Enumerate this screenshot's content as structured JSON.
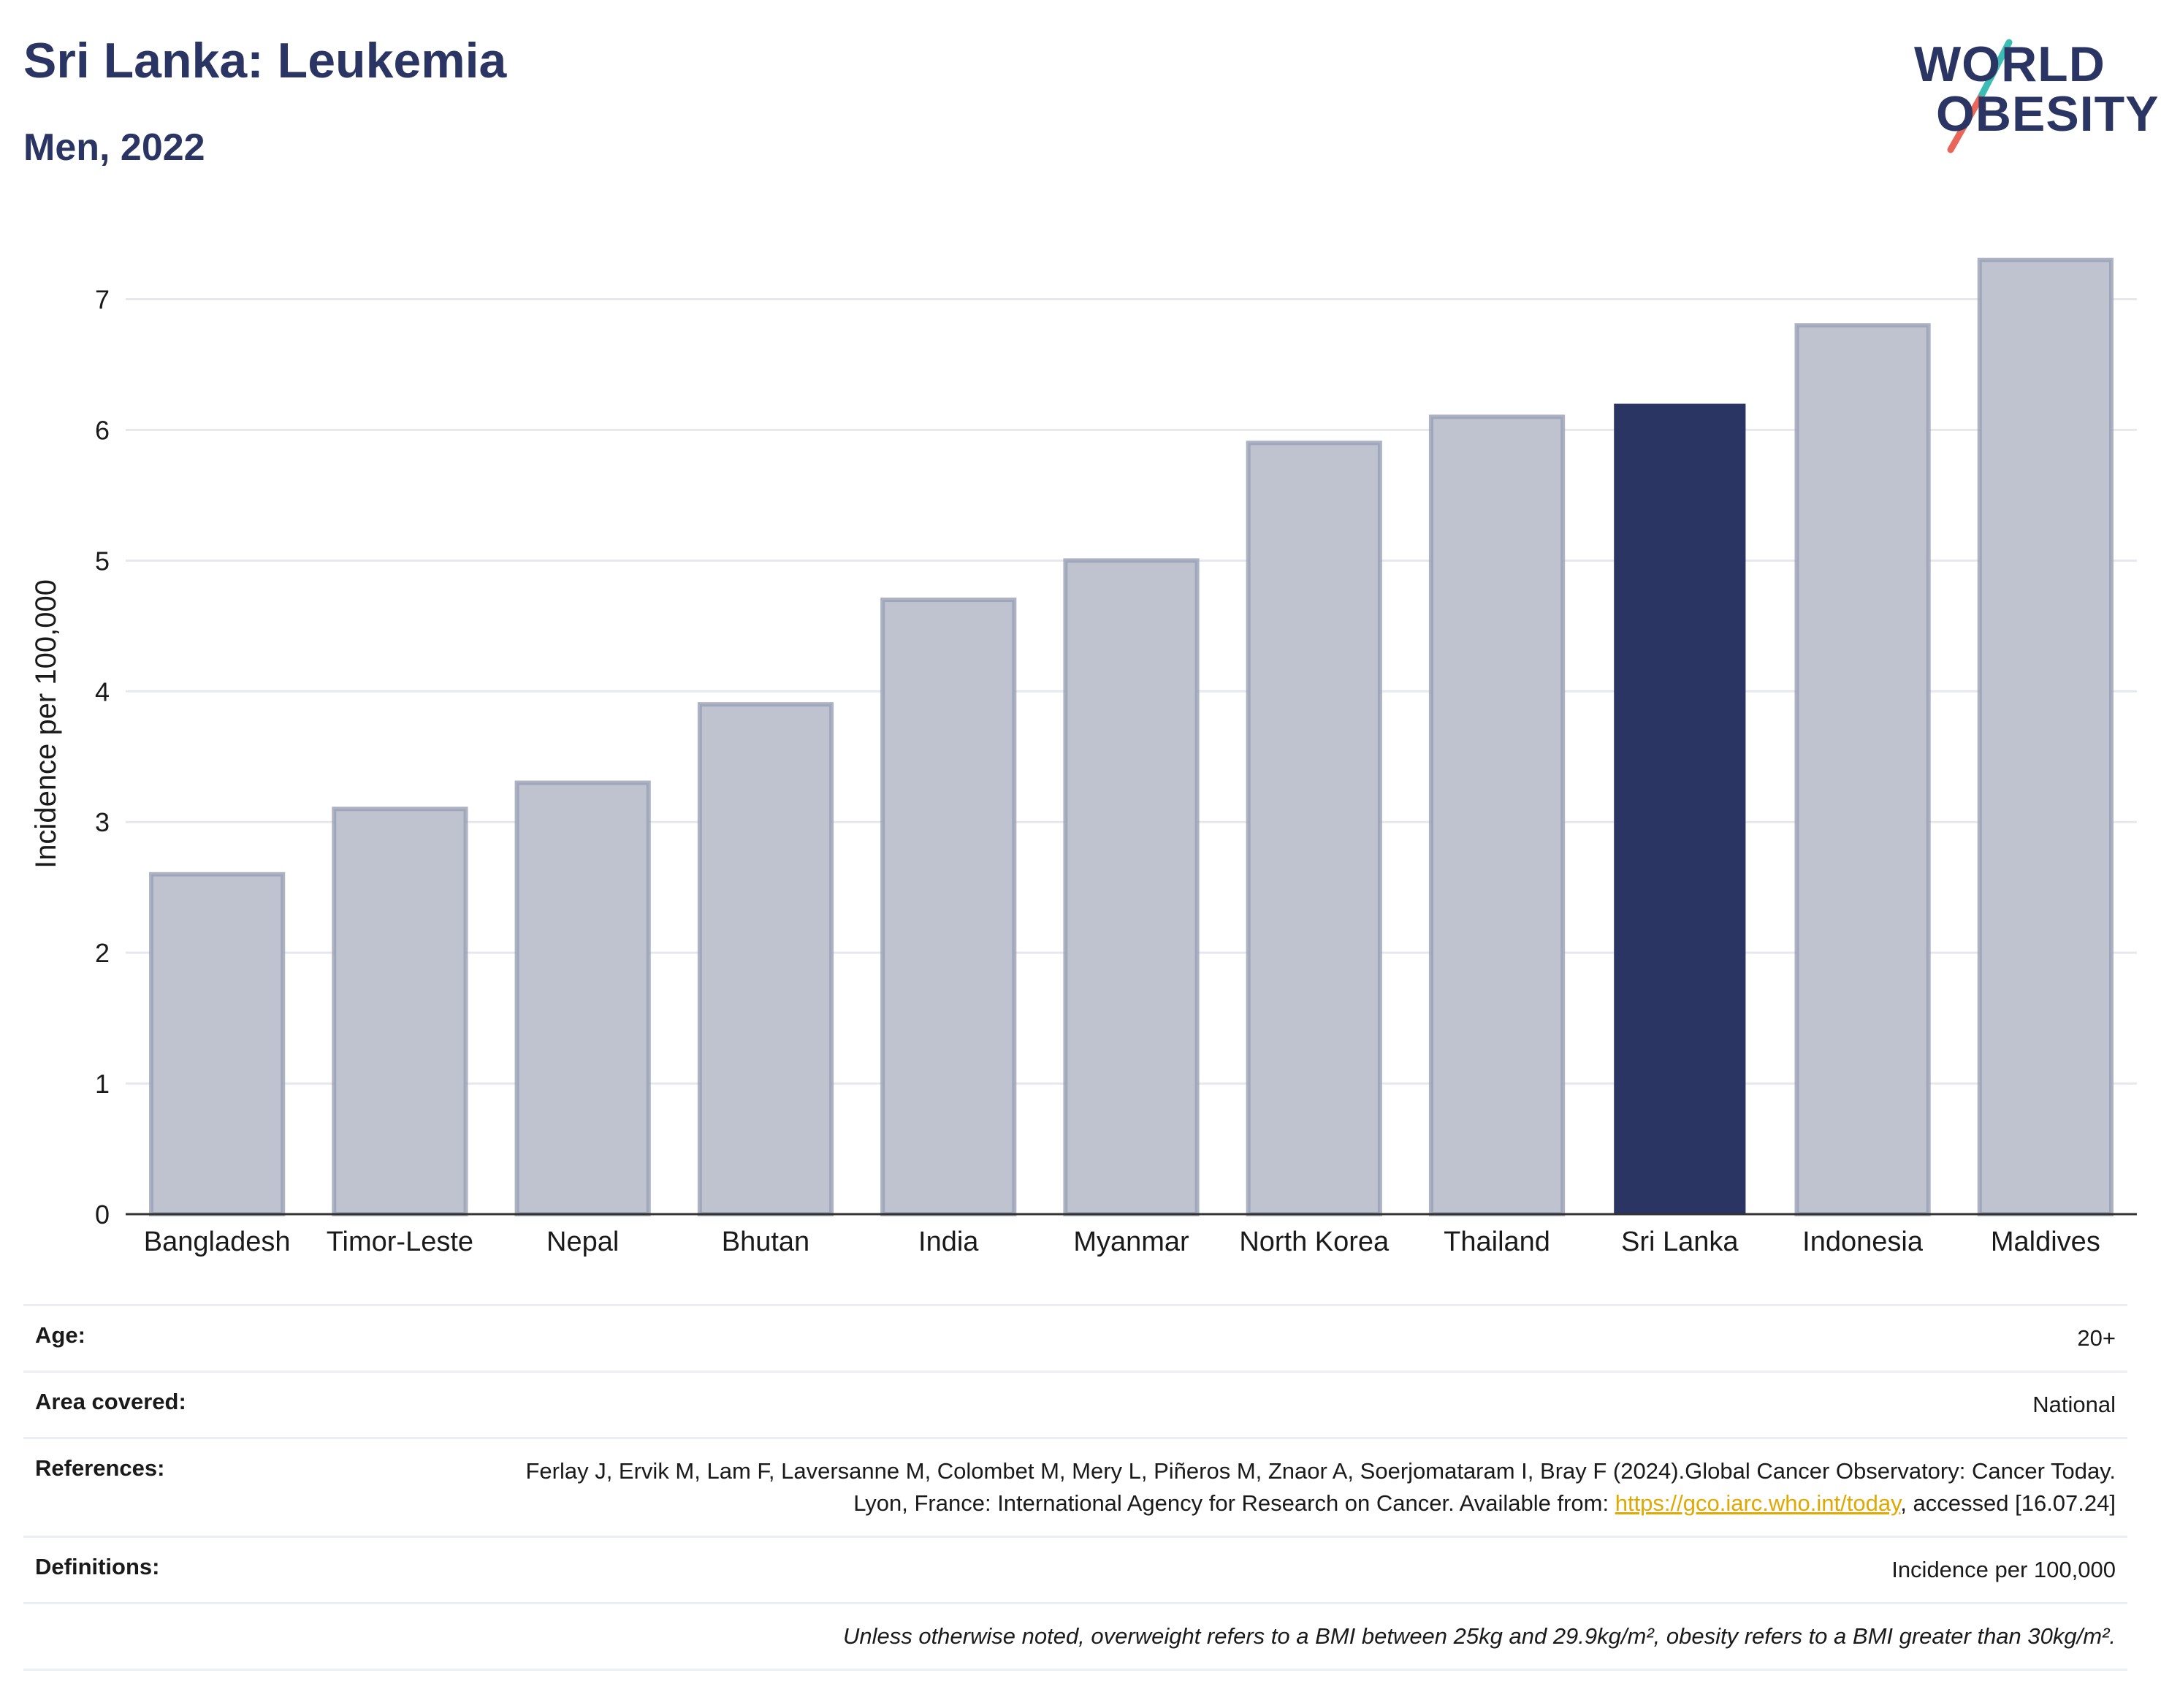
{
  "header": {
    "title": "Sri Lanka: Leukemia",
    "subtitle": "Men, 2022"
  },
  "logo": {
    "line1": "WORLD",
    "line2": "OBESITY",
    "colors": {
      "text": "#2b3563",
      "slash_top": "#3bbcb4",
      "slash_bottom": "#e8675a"
    }
  },
  "chart_data": {
    "type": "bar",
    "categories": [
      "Bangladesh",
      "Timor-Leste",
      "Nepal",
      "Bhutan",
      "India",
      "Myanmar",
      "North Korea",
      "Thailand",
      "Sri Lanka",
      "Indonesia",
      "Maldives"
    ],
    "values": [
      2.6,
      3.1,
      3.3,
      3.9,
      4.7,
      5.0,
      5.9,
      6.1,
      6.2,
      6.8,
      7.3
    ],
    "highlight": "Sri Lanka",
    "ylabel": "Incidence per 100,000",
    "ylim": [
      0,
      7.5
    ],
    "yticks": [
      0,
      1,
      2,
      3,
      4,
      5,
      6,
      7
    ],
    "grid": true,
    "colors": {
      "bar": "#bfc3cf",
      "bar_border": "#9aa0b5",
      "highlight": "#2b3563"
    }
  },
  "meta": {
    "age_label": "Age:",
    "age_value": "20+",
    "area_label": "Area covered:",
    "area_value": "National",
    "references_label": "References:",
    "references_text_1": "Ferlay J, Ervik M, Lam F, Laversanne M, Colombet M, Mery L, Piñeros M, Znaor A, Soerjomataram I, Bray F (2024).Global Cancer Observatory: Cancer Today. Lyon, France: International Agency for Research on Cancer. Available from: ",
    "references_link": "https://gco.iarc.who.int/today",
    "references_text_2": ", accessed [16.07.24]",
    "definitions_label": "Definitions:",
    "definitions_value": "Incidence per 100,000",
    "note": "Unless otherwise noted, overweight refers to a BMI between 25kg and 29.9kg/m², obesity refers to a BMI greater than 30kg/m²."
  }
}
